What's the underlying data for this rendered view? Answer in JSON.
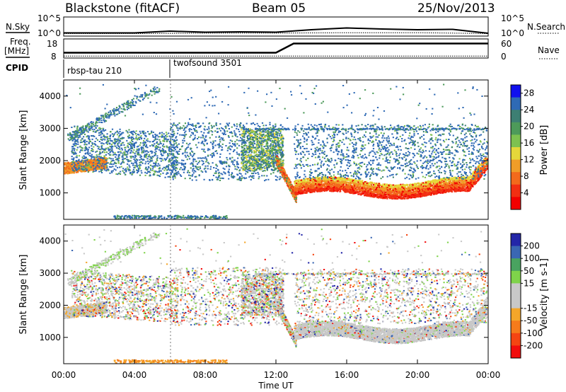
{
  "header": {
    "title": "Blackstone (fitACF)",
    "beam": "Beam 05",
    "date": "25/Nov/2013"
  },
  "side_labels": {
    "nsky": "N.Sky",
    "freq": "Freq.",
    "mhz": "[MHz]",
    "cpid": "CPID",
    "nsearch": "N.Search",
    "nave": "Nave"
  },
  "noise_axis": {
    "left_ticks": [
      "10^5",
      "10^0"
    ],
    "right_ticks": [
      "10^5",
      "10^0"
    ]
  },
  "freq_axis": {
    "left_ticks": [
      "18",
      "8"
    ],
    "right_ticks": [
      "60",
      "0"
    ]
  },
  "cpid_labels": [
    "rbsp-tau 210",
    "twofsound 3501"
  ],
  "colors": {
    "power_scale": [
      "#1010ee",
      "#2f6ab5",
      "#3d7f73",
      "#4d9a5a",
      "#7ec150",
      "#e5d73a",
      "#f09d28",
      "#f36a1c",
      "#f22f12",
      "#f20000"
    ],
    "velocity_scale": [
      "#2326a8",
      "#3a67b3",
      "#49a360",
      "#7fd34a",
      "#c8c8c8",
      "#c8c8c8",
      "#f4a629",
      "#f67b1b",
      "#f54512",
      "#f20d0d"
    ]
  },
  "chart_data": [
    {
      "type": "line",
      "title": "Blackstone (fitACF)",
      "panel": "noise",
      "series": [
        {
          "name": "N.Sky",
          "x": [
            "00:00",
            "02:00",
            "04:00",
            "06:00",
            "08:00",
            "10:00",
            "12:00",
            "14:00",
            "16:00",
            "18:00",
            "20:00",
            "22:00",
            "24:00"
          ],
          "values": [
            7,
            7,
            7,
            12,
            9,
            10,
            9,
            16,
            21,
            18,
            16,
            17,
            6
          ]
        },
        {
          "name": "N.Search",
          "x": [
            "00:00",
            "04:00",
            "08:00",
            "12:00",
            "16:00",
            "20:00",
            "24:00"
          ],
          "values": [
            1,
            1,
            2,
            2,
            3,
            3,
            1
          ]
        }
      ],
      "y_scale": "log",
      "ylim": [
        1,
        100000
      ]
    },
    {
      "type": "line",
      "panel": "frequency",
      "series": [
        {
          "name": "Freq.",
          "x": [
            "00:00",
            "06:00",
            "12:00",
            "13:00",
            "24:00"
          ],
          "values": [
            10.5,
            10.5,
            10.5,
            15.5,
            15.5
          ]
        },
        {
          "name": "Nave",
          "x": [
            "00:00",
            "24:00"
          ],
          "values": [
            4,
            4
          ]
        }
      ],
      "ylim": [
        8,
        18
      ],
      "y2lim": [
        0,
        60
      ]
    },
    {
      "type": "heatmap",
      "panel": "power",
      "xlabel": "",
      "ylabel": "Slant Range [km]",
      "xlim": [
        "00:00",
        "24:00"
      ],
      "ylim": [
        180,
        4500
      ],
      "yticks": [
        1000,
        2000,
        3000,
        4000
      ],
      "colorbar": {
        "label": "Power [dB]",
        "ticks": [
          4,
          8,
          12,
          16,
          20,
          24,
          28
        ],
        "range": [
          0,
          30
        ]
      }
    },
    {
      "type": "heatmap",
      "panel": "velocity",
      "xlabel": "Time UT",
      "ylabel": "Slant Range [km]",
      "xlim": [
        "00:00",
        "24:00"
      ],
      "ylim": [
        180,
        4500
      ],
      "yticks": [
        1000,
        2000,
        3000,
        4000
      ],
      "xticks": [
        "00:00",
        "04:00",
        "08:00",
        "12:00",
        "16:00",
        "20:00",
        "00:00"
      ],
      "colorbar": {
        "label": "Velocity [m s-1]",
        "ticks": [
          200,
          100,
          50,
          15,
          -15,
          -50,
          -100,
          -200
        ],
        "range": [
          -250,
          250
        ]
      }
    }
  ]
}
